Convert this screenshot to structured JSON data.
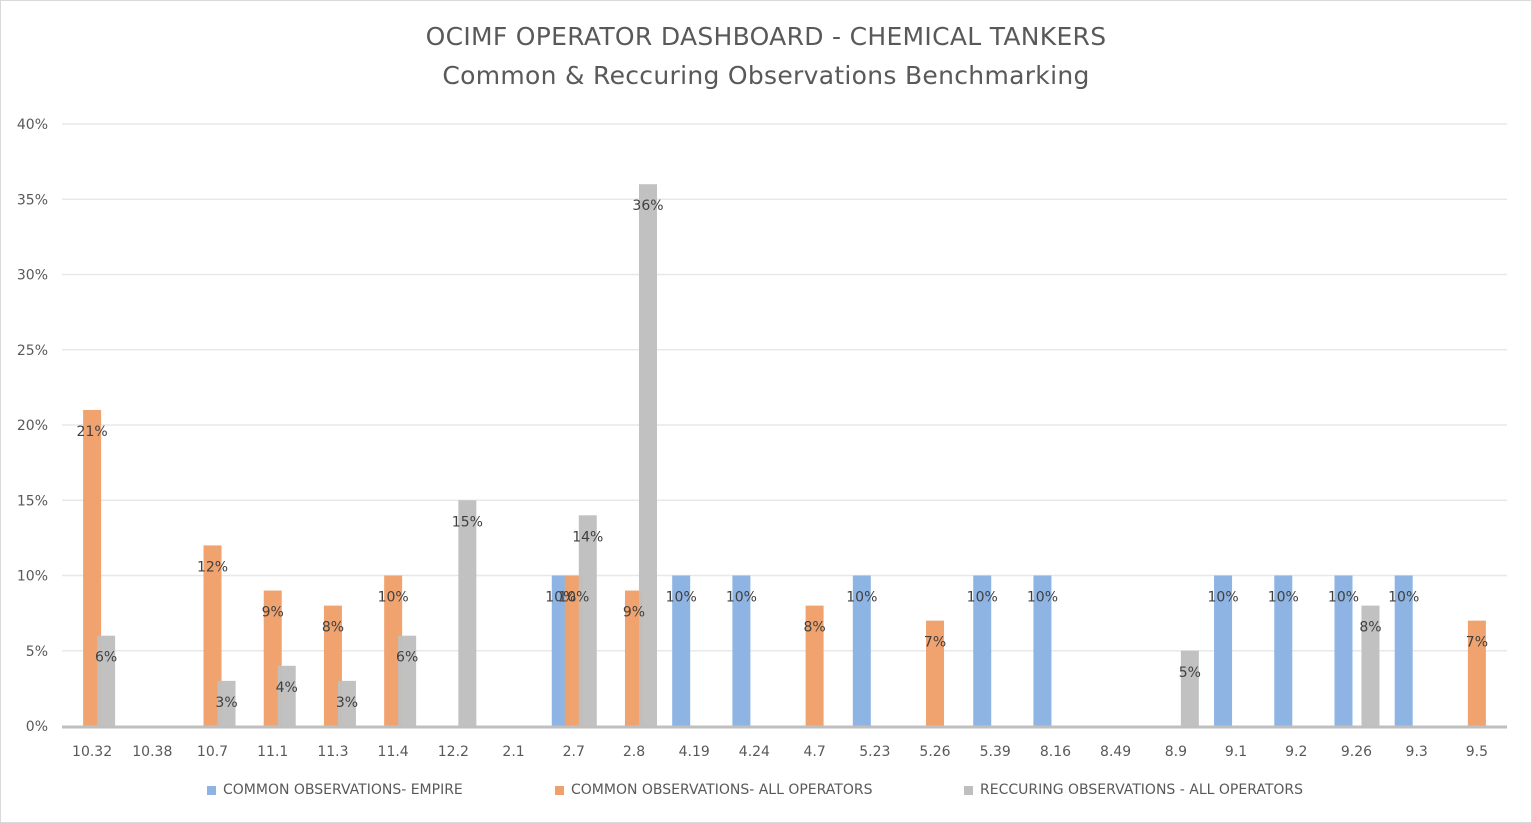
{
  "chart_data": {
    "type": "bar",
    "title": "OCIMF OPERATOR DASHBOARD  - CHEMICAL TANKERS",
    "subtitle": "Common & Reccuring Observations Benchmarking",
    "xlabel": "",
    "ylabel": "",
    "ylim": [
      0,
      40
    ],
    "yticks": [
      "0%",
      "5%",
      "10%",
      "15%",
      "20%",
      "25%",
      "30%",
      "35%",
      "40%"
    ],
    "ytick_values": [
      0,
      5,
      10,
      15,
      20,
      25,
      30,
      35,
      40
    ],
    "grid": true,
    "legend_position": "bottom",
    "categories": [
      "10.32",
      "10.38",
      "10.7",
      "11.1",
      "11.3",
      "11.4",
      "12.2",
      "2.1",
      "2.7",
      "2.8",
      "4.19",
      "4.24",
      "4.7",
      "5.23",
      "5.26",
      "5.39",
      "8.16",
      "8.49",
      "8.9",
      "9.1",
      "9.2",
      "9.26",
      "9.3",
      "9.5"
    ],
    "series": [
      {
        "name": "COMMON OBSERVATIONS- EMPIRE",
        "color": "#8db4e2",
        "values": [
          null,
          null,
          null,
          null,
          null,
          null,
          null,
          null,
          10,
          null,
          10,
          10,
          null,
          10,
          null,
          10,
          10,
          null,
          null,
          10,
          10,
          10,
          10,
          null
        ]
      },
      {
        "name": "COMMON OBSERVATIONS- ALL OPERATORS",
        "color": "#f0a06a",
        "values": [
          21,
          null,
          12,
          9,
          8,
          10,
          null,
          null,
          10,
          9,
          null,
          null,
          8,
          null,
          7,
          null,
          null,
          null,
          null,
          null,
          null,
          null,
          null,
          7
        ]
      },
      {
        "name": "RECCURING OBSERVATIONS - ALL OPERATORS",
        "color": "#bfbfbf",
        "values": [
          6,
          null,
          3,
          4,
          3,
          6,
          15,
          null,
          14,
          36,
          null,
          null,
          null,
          null,
          null,
          null,
          null,
          null,
          5,
          null,
          null,
          8,
          null,
          null
        ]
      }
    ],
    "value_suffix": "%"
  },
  "colors": {
    "grid": "#e8e8e8",
    "axis": "#bfbfbf",
    "text": "#595959"
  }
}
